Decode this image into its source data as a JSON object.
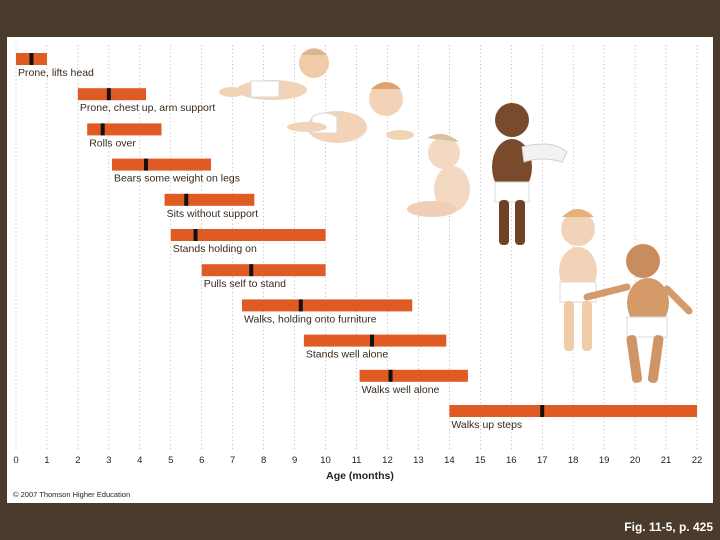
{
  "chart_data": {
    "type": "bar",
    "subtype": "range",
    "title": "",
    "xlabel": "Age (months)",
    "ylabel": "",
    "xlim": [
      0,
      22
    ],
    "x_ticks": [
      "0",
      "1",
      "2",
      "3",
      "4",
      "5",
      "6",
      "7",
      "8",
      "9",
      "10",
      "11",
      "12",
      "13",
      "14",
      "15",
      "16",
      "17",
      "18",
      "19",
      "20",
      "21",
      "22"
    ],
    "grid": "vertical dotted",
    "colors": {
      "bar": "#e05a24",
      "marker": "#111111",
      "label": "#3a2a1c"
    },
    "milestones": [
      {
        "label": "Prone, lifts head",
        "start": 0,
        "end": 1.0,
        "median": 0.5
      },
      {
        "label": "Prone, chest up, arm support",
        "start": 2.0,
        "end": 4.2,
        "median": 3.0
      },
      {
        "label": "Rolls over",
        "start": 2.3,
        "end": 4.7,
        "median": 2.8
      },
      {
        "label": "Bears some weight on legs",
        "start": 3.1,
        "end": 6.3,
        "median": 4.2
      },
      {
        "label": "Sits without support",
        "start": 4.8,
        "end": 7.7,
        "median": 5.5
      },
      {
        "label": "Stands holding on",
        "start": 5.0,
        "end": 10.0,
        "median": 5.8
      },
      {
        "label": "Pulls self to stand",
        "start": 6.0,
        "end": 10.0,
        "median": 7.6
      },
      {
        "label": "Walks, holding onto furniture",
        "start": 7.3,
        "end": 12.8,
        "median": 9.2
      },
      {
        "label": "Stands well alone",
        "start": 9.3,
        "end": 13.9,
        "median": 11.5
      },
      {
        "label": "Walks well alone",
        "start": 11.1,
        "end": 14.6,
        "median": 12.1
      },
      {
        "label": "Walks up steps",
        "start": 14.0,
        "end": 22.0,
        "median": 17.0
      }
    ]
  },
  "illustrations": [
    {
      "name": "baby-prone-lifting-head-illustration"
    },
    {
      "name": "baby-prone-chest-up-illustration"
    },
    {
      "name": "baby-sitting-illustration"
    },
    {
      "name": "baby-standing-holding-on-illustration"
    },
    {
      "name": "baby-standing-alone-illustration"
    },
    {
      "name": "baby-walking-illustration"
    }
  ],
  "copyright": "© 2007 Thomson Higher Education",
  "caption": "Fig. 11-5, p. 425"
}
